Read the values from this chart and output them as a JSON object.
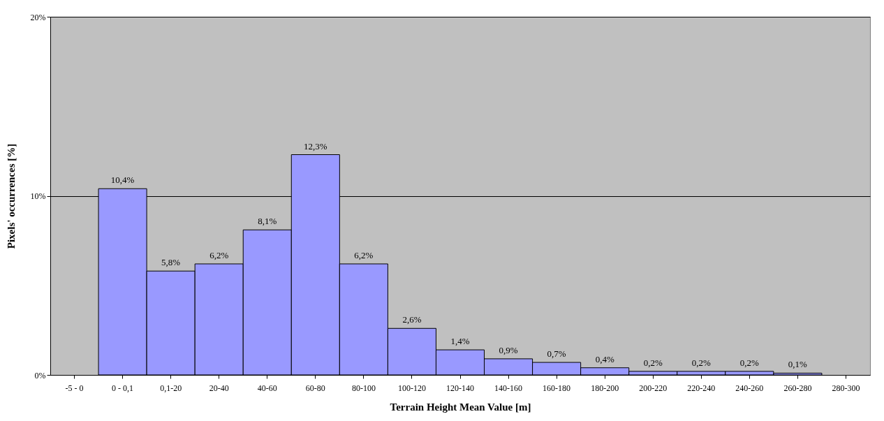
{
  "chart_data": {
    "type": "bar",
    "xlabel": "Terrain Height Mean Value [m]",
    "ylabel": "Pixels' occurrences [%]",
    "categories": [
      "-5 - 0",
      "0 - 0,1",
      "0,1-20",
      "20-40",
      "40-60",
      "60-80",
      "80-100",
      "100-120",
      "120-140",
      "140-160",
      "160-180",
      "180-200",
      "200-220",
      "220-240",
      "240-260",
      "260-280",
      "280-300"
    ],
    "values": [
      null,
      10.4,
      5.8,
      6.2,
      8.1,
      12.3,
      6.2,
      2.6,
      1.4,
      0.9,
      0.7,
      0.4,
      0.2,
      0.2,
      0.2,
      0.1,
      null
    ],
    "value_labels": [
      null,
      "10,4%",
      "5,8%",
      "6,2%",
      "8,1%",
      "12,3%",
      "6,2%",
      "2,6%",
      "1,4%",
      "0,9%",
      "0,7%",
      "0,4%",
      "0,2%",
      "0,2%",
      "0,2%",
      "0,1%",
      null
    ],
    "color": "#9999ff",
    "ylim": [
      0,
      20
    ],
    "yticks": [
      {
        "value": 0,
        "label": "0%"
      },
      {
        "value": 10,
        "label": "10%"
      },
      {
        "value": 20,
        "label": "20%"
      }
    ],
    "grid": "y"
  }
}
